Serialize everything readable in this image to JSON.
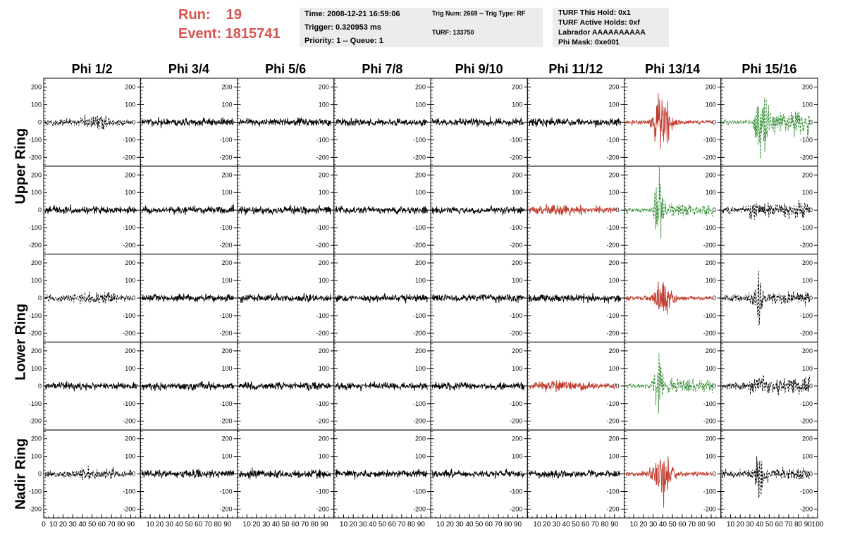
{
  "header": {
    "run_label": "Run:",
    "run_value": "19",
    "event_label": "Event:",
    "event_value": "1815741",
    "time": "Time: 2008-12-21 16:59:06",
    "trigger": "Trigger: 0.320953 ms",
    "priority": "Priority: 1 -- Queue: 1",
    "trig_num": "Trig Num: 2669 -- Trig Type: RF",
    "turf": "TURF: 133750",
    "turf_hold": "TURF This Hold: 0x1",
    "turf_active": "TURF Active Holds: 0xf",
    "labrador": "Labrador AAAAAAAAAA",
    "phi_mask": "Phi Mask: 0xe001"
  },
  "colors": {
    "header_red": "#d9534f",
    "trace_black": "#000000",
    "trace_red": "#c0392b",
    "trace_green": "#2e8b2e"
  },
  "chart_data": {
    "type": "line",
    "columns": [
      "Phi 1/2",
      "Phi 3/4",
      "Phi 5/6",
      "Phi 7/8",
      "Phi 9/10",
      "Phi 11/12",
      "Phi 13/14",
      "Phi 15/16"
    ],
    "rows": [
      "Upper Ring",
      "Lower Ring",
      "Nadir Ring"
    ],
    "ylim": [
      -250,
      250
    ],
    "xlim": [
      0,
      100
    ],
    "y_ticks": [
      "200",
      "100",
      "0",
      "-100",
      "-200"
    ],
    "x_tick_labels_per_panel": [
      "0",
      "10",
      "20",
      "30",
      "40",
      "50",
      "60",
      "70",
      "80",
      "90",
      "100"
    ],
    "panels": [
      [
        "black-dashed-burst",
        "black",
        "black",
        "black",
        "black",
        "black",
        "red-burst",
        "green-dashed-big"
      ],
      [
        "black",
        "black",
        "black",
        "black",
        "black",
        "red-noise",
        "green-dashed-burst",
        "black-dashed"
      ],
      [
        "black-dashed-burst",
        "black",
        "black",
        "black",
        "black",
        "black",
        "red-burst",
        "black-dashed-spike"
      ],
      [
        "black",
        "black",
        "black",
        "black",
        "black",
        "red-noise",
        "green-dashed-burst",
        "black-dashed"
      ],
      [
        "black-dashed-burst",
        "black",
        "black",
        "black",
        "black",
        "black",
        "red-burst",
        "black-dashed-spike"
      ]
    ]
  }
}
